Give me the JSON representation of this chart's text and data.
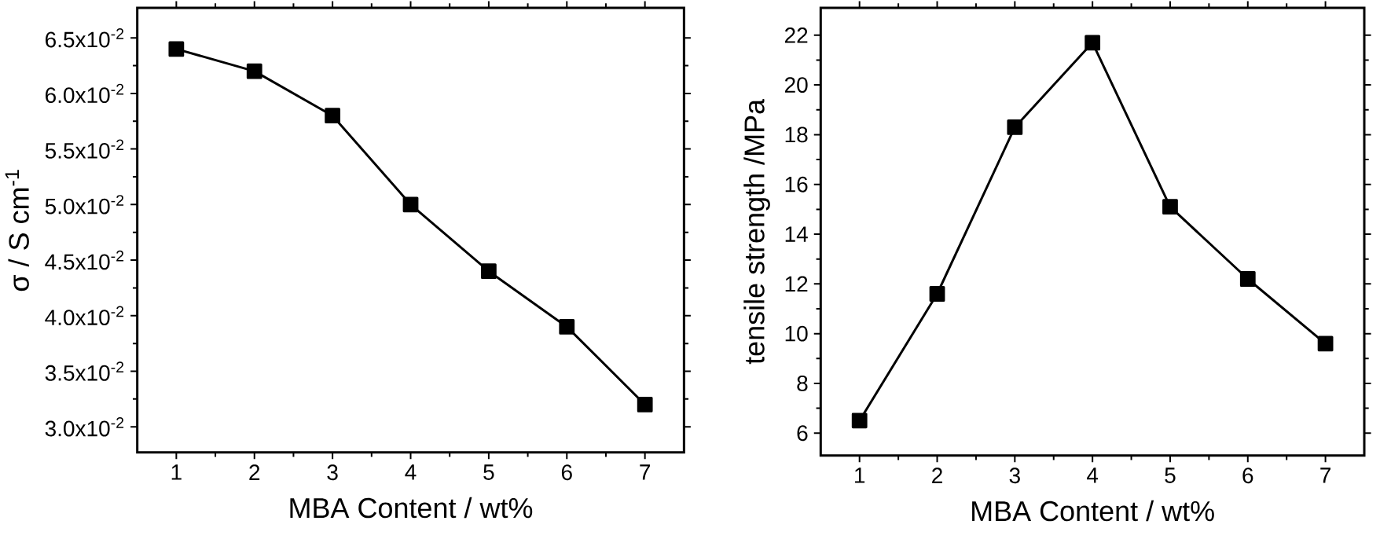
{
  "chart_data": [
    {
      "type": "line",
      "xlabel": "MBA Content / wt%",
      "ylabel": "σ / S cm$^{-1}$",
      "x": [
        1,
        2,
        3,
        4,
        5,
        6,
        7
      ],
      "values": [
        0.064,
        0.062,
        0.058,
        0.05,
        0.044,
        0.039,
        0.032
      ],
      "color": "#000000",
      "marker": "square",
      "line_style": "solid",
      "xlim": [
        0.5,
        7.5
      ],
      "ylim": [
        0.0277,
        0.0677
      ],
      "xticks": [
        1,
        2,
        3,
        4,
        5,
        6,
        7
      ],
      "yticks": [
        {
          "value": 0.03,
          "label": "3.0x10$^{-2}$"
        },
        {
          "value": 0.035,
          "label": "3.5x10$^{-2}$"
        },
        {
          "value": 0.04,
          "label": "4.0x10$^{-2}$"
        },
        {
          "value": 0.045,
          "label": "4.5x10$^{-2}$"
        },
        {
          "value": 0.05,
          "label": "5.0x10$^{-2}$"
        },
        {
          "value": 0.055,
          "label": "5.5x10$^{-2}$"
        },
        {
          "value": 0.06,
          "label": "6.0x10$^{-2}$"
        },
        {
          "value": 0.065,
          "label": "6.5x10$^{-2}$"
        }
      ]
    },
    {
      "type": "line",
      "xlabel": "MBA Content / wt%",
      "ylabel": "tensile strength /MPa",
      "x": [
        1,
        2,
        3,
        4,
        5,
        6,
        7
      ],
      "values": [
        6.5,
        11.6,
        18.3,
        21.7,
        15.1,
        12.2,
        9.6
      ],
      "color": "#000000",
      "marker": "square",
      "line_style": "solid",
      "xlim": [
        0.5,
        7.5
      ],
      "ylim": [
        5.1,
        23.1
      ],
      "xticks": [
        1,
        2,
        3,
        4,
        5,
        6,
        7
      ],
      "yticks": [
        6,
        8,
        10,
        12,
        14,
        16,
        18,
        20,
        22
      ]
    }
  ]
}
